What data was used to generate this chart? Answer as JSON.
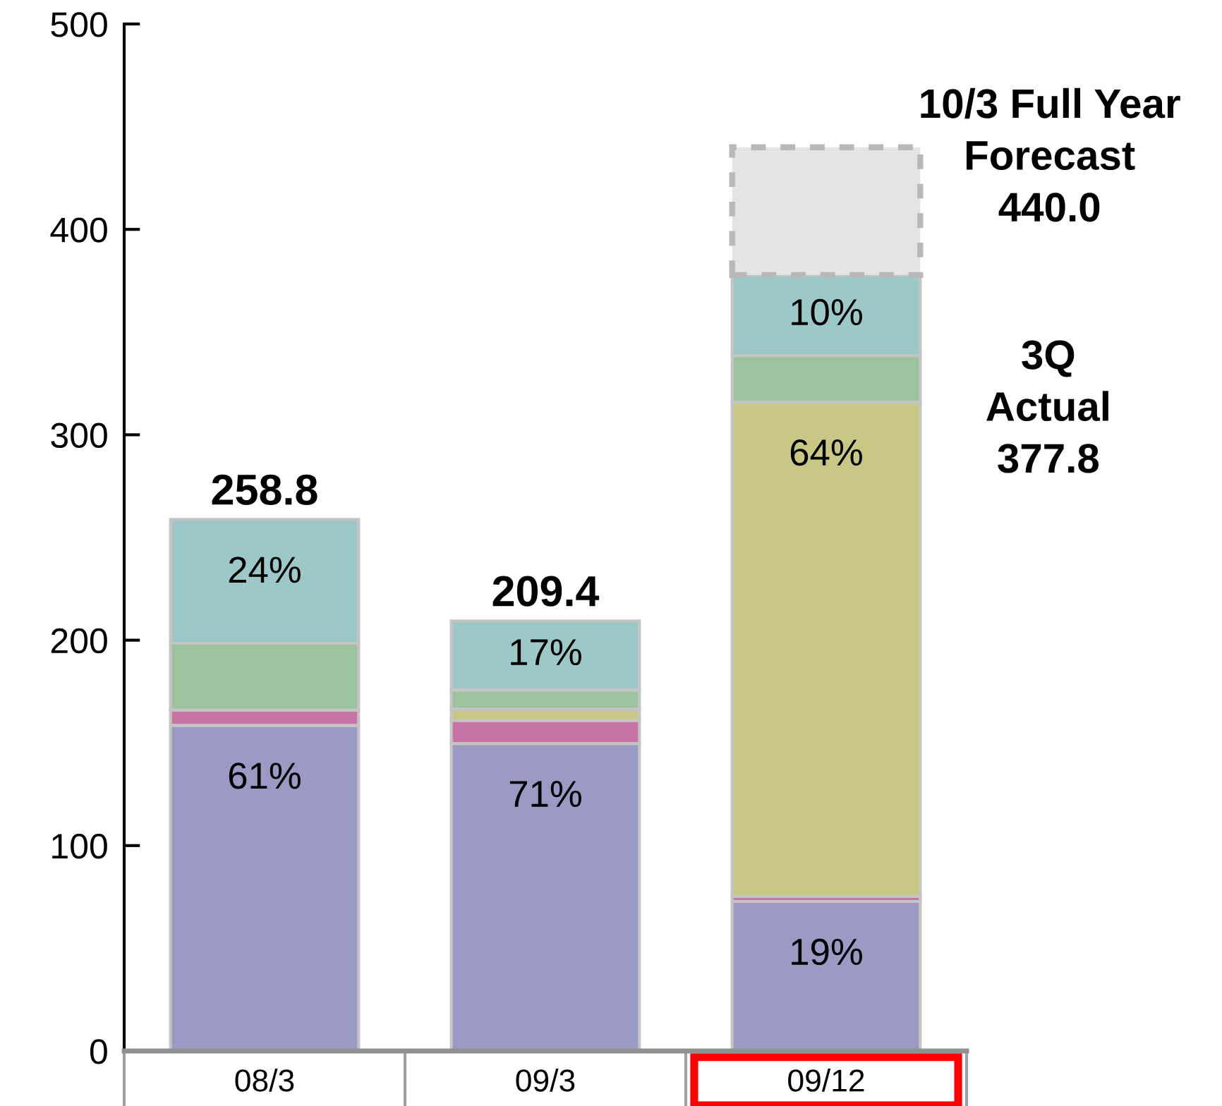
{
  "chart_data": {
    "type": "bar",
    "stacked": true,
    "categories": [
      "08/3",
      "09/3",
      "09/12"
    ],
    "series": [
      {
        "color": "#9a9ac4",
        "values": [
          158.5,
          149.7,
          72.8
        ]
      },
      {
        "color": "#c874a4",
        "values": [
          7.5,
          11.2,
          2.5
        ]
      },
      {
        "color": "#c8c884",
        "values": [
          null,
          5.5,
          240.6
        ]
      },
      {
        "color": "#9cc49c",
        "values": [
          32.5,
          9.4,
          22.6
        ]
      },
      {
        "color": "#9cc8c8",
        "values": [
          60.3,
          33.6,
          39.3
        ]
      },
      {
        "color": "#e4e4e4",
        "values": [
          null,
          null,
          62.2
        ],
        "line_style": "dashed"
      }
    ],
    "ylim": [
      0,
      500
    ],
    "yticks": [
      0,
      100,
      200,
      300,
      400,
      500
    ],
    "totals": [
      "258.8",
      "209.4",
      null
    ],
    "annotations": [
      {
        "text": "10/3 Full Year\nForecast\n440.0",
        "x": "09/12",
        "y": 440
      },
      "3Q\nActual\n377.8",
      {
        "text": "61%",
        "x": "08/3",
        "y": 158.5
      },
      {
        "text": "24%",
        "x": "08/3",
        "y": 258.8
      },
      {
        "text": "71%",
        "x": "09/3",
        "y": 149.7
      },
      {
        "text": "17%",
        "x": "09/3",
        "y": 209.4
      },
      {
        "text": "19%",
        "x": "09/12",
        "y": 72.8
      },
      {
        "text": "64%",
        "x": "09/12",
        "y": 315.9
      },
      {
        "text": "10%",
        "x": "09/12",
        "y": 377.8
      }
    ]
  }
}
